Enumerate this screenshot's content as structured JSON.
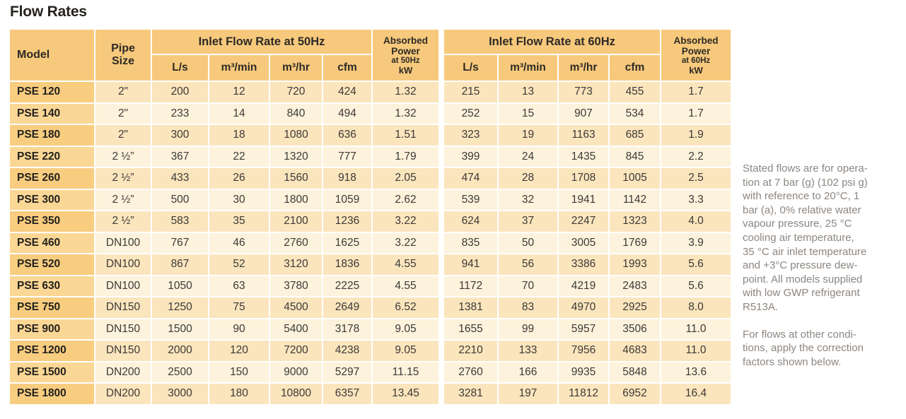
{
  "page_title": "Flow Rates",
  "colors": {
    "header_bg": "#f7c97c",
    "model_odd_bg": "#f8cd80",
    "model_even_bg": "#fbd795",
    "row_odd_bg": "#fbe5bd",
    "row_even_bg": "#fdf2dc",
    "grid": "#ffffff",
    "title_text": "#26231f",
    "header_text": "#2d2a26",
    "data_text": "#3c3936",
    "note_text": "#8d8680"
  },
  "table": {
    "header": {
      "model": "Model",
      "pipe_size": "Pipe Size",
      "group_50hz": "Inlet Flow Rate at 50Hz",
      "group_60hz": "Inlet Flow Rate at 60Hz",
      "units": [
        "L/s",
        "m³/min",
        "m³/hr",
        "cfm"
      ],
      "absorbed_power": "Absorbed Power",
      "at_50hz": "at 50Hz",
      "at_60hz": "at 60Hz",
      "kw": "kW"
    },
    "rows": [
      {
        "model": "PSE 120",
        "pipe": "2\"",
        "hz50": [
          "200",
          "12",
          "720",
          "424"
        ],
        "kw50": "1.32",
        "hz60": [
          "215",
          "13",
          "773",
          "455"
        ],
        "kw60": "1.7"
      },
      {
        "model": "PSE 140",
        "pipe": "2\"",
        "hz50": [
          "233",
          "14",
          "840",
          "494"
        ],
        "kw50": "1.32",
        "hz60": [
          "252",
          "15",
          "907",
          "534"
        ],
        "kw60": "1.7"
      },
      {
        "model": "PSE 180",
        "pipe": "2\"",
        "hz50": [
          "300",
          "18",
          "1080",
          "636"
        ],
        "kw50": "1.51",
        "hz60": [
          "323",
          "19",
          "1163",
          "685"
        ],
        "kw60": "1.9"
      },
      {
        "model": "PSE 220",
        "pipe": "2 ½”",
        "hz50": [
          "367",
          "22",
          "1320",
          "777"
        ],
        "kw50": "1.79",
        "hz60": [
          "399",
          "24",
          "1435",
          "845"
        ],
        "kw60": "2.2"
      },
      {
        "model": "PSE 260",
        "pipe": "2 ½”",
        "hz50": [
          "433",
          "26",
          "1560",
          "918"
        ],
        "kw50": "2.05",
        "hz60": [
          "474",
          "28",
          "1708",
          "1005"
        ],
        "kw60": "2.5"
      },
      {
        "model": "PSE 300",
        "pipe": "2 ½”",
        "hz50": [
          "500",
          "30",
          "1800",
          "1059"
        ],
        "kw50": "2.62",
        "hz60": [
          "539",
          "32",
          "1941",
          "1142"
        ],
        "kw60": "3.3"
      },
      {
        "model": "PSE 350",
        "pipe": "2 ½”",
        "hz50": [
          "583",
          "35",
          "2100",
          "1236"
        ],
        "kw50": "3.22",
        "hz60": [
          "624",
          "37",
          "2247",
          "1323"
        ],
        "kw60": "4.0"
      },
      {
        "model": "PSE 460",
        "pipe": "DN100",
        "hz50": [
          "767",
          "46",
          "2760",
          "1625"
        ],
        "kw50": "3.22",
        "hz60": [
          "835",
          "50",
          "3005",
          "1769"
        ],
        "kw60": "3.9"
      },
      {
        "model": "PSE 520",
        "pipe": "DN100",
        "hz50": [
          "867",
          "52",
          "3120",
          "1836"
        ],
        "kw50": "4.55",
        "hz60": [
          "941",
          "56",
          "3386",
          "1993"
        ],
        "kw60": "5.6"
      },
      {
        "model": "PSE 630",
        "pipe": "DN100",
        "hz50": [
          "1050",
          "63",
          "3780",
          "2225"
        ],
        "kw50": "4.55",
        "hz60": [
          "1172",
          "70",
          "4219",
          "2483"
        ],
        "kw60": "5.6"
      },
      {
        "model": "PSE 750",
        "pipe": "DN150",
        "hz50": [
          "1250",
          "75",
          "4500",
          "2649"
        ],
        "kw50": "6.52",
        "hz60": [
          "1381",
          "83",
          "4970",
          "2925"
        ],
        "kw60": "8.0"
      },
      {
        "model": "PSE 900",
        "pipe": "DN150",
        "hz50": [
          "1500",
          "90",
          "5400",
          "3178"
        ],
        "kw50": "9.05",
        "hz60": [
          "1655",
          "99",
          "5957",
          "3506"
        ],
        "kw60": "11.0"
      },
      {
        "model": "PSE 1200",
        "pipe": "DN150",
        "hz50": [
          "2000",
          "120",
          "7200",
          "4238"
        ],
        "kw50": "9.05",
        "hz60": [
          "2210",
          "133",
          "7956",
          "4683"
        ],
        "kw60": "11.0"
      },
      {
        "model": "PSE 1500",
        "pipe": "DN200",
        "hz50": [
          "2500",
          "150",
          "9000",
          "5297"
        ],
        "kw50": "11.15",
        "hz60": [
          "2760",
          "166",
          "9935",
          "5848"
        ],
        "kw60": "13.6"
      },
      {
        "model": "PSE 1800",
        "pipe": "DN200",
        "hz50": [
          "3000",
          "180",
          "10800",
          "6357"
        ],
        "kw50": "13.45",
        "hz60": [
          "3281",
          "197",
          "11812",
          "6952"
        ],
        "kw60": "16.4"
      }
    ]
  },
  "notes": {
    "para1": "Stated flows are for opera-\ntion at 7 bar (g) (102 psi g)\nwith reference to 20°C, 1\nbar (a), 0% relative water\nvapour pressure, 25 °C\ncooling air temperature,\n35 °C air inlet temperature\nand +3°C pressure dew-\npoint. All models supplied\nwith low GWP refrigerant\nR513A.",
    "para2": "For flows at other condi-\ntions, apply the correction\nfactors shown below."
  }
}
